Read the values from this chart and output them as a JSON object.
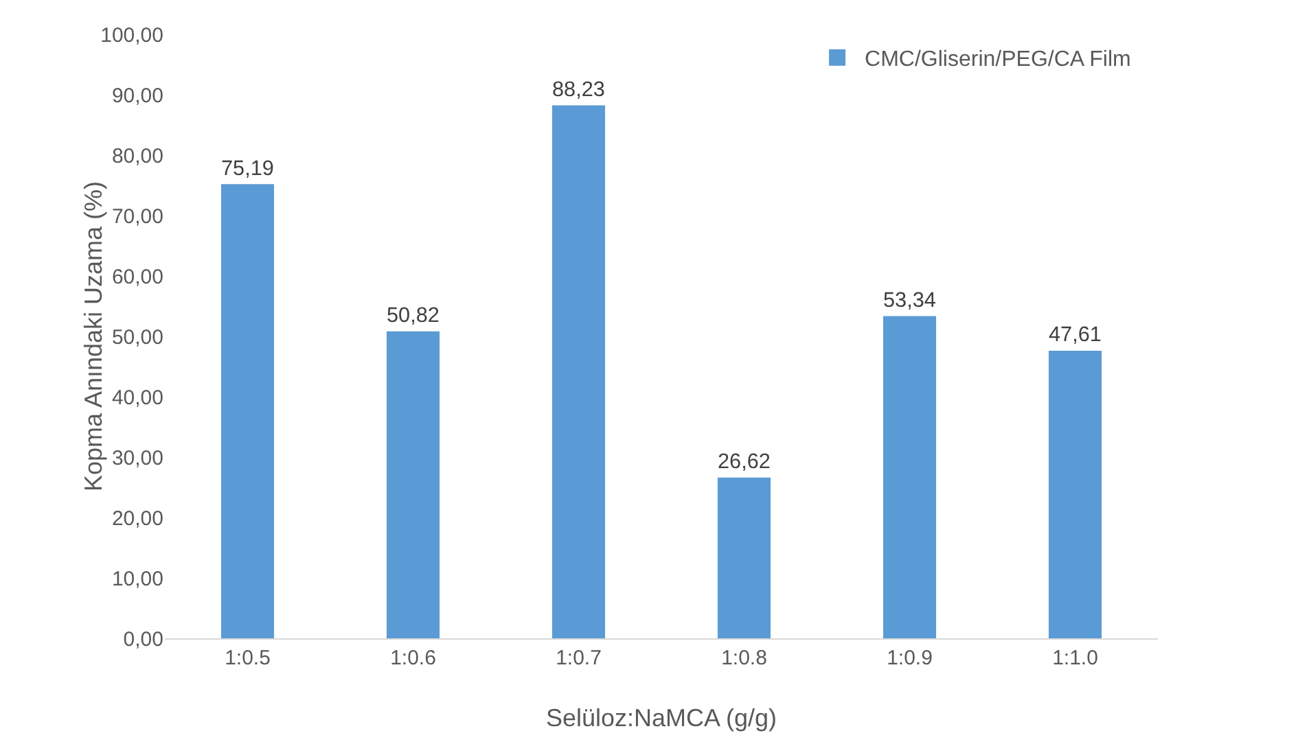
{
  "chart_data": {
    "type": "bar",
    "xlabel": "Selüloz:NaMCA (g/g)",
    "ylabel": "Kopma Anındaki Uzama (%)",
    "categories": [
      "1:0.5",
      "1:0.6",
      "1:0.7",
      "1:0.8",
      "1:0.9",
      "1:1.0"
    ],
    "series": [
      {
        "name": "CMC/Gliserin/PEG/CA Film",
        "color": "#5b9bd5",
        "values": [
          75.19,
          50.82,
          88.23,
          26.62,
          53.34,
          47.61
        ],
        "value_labels": [
          "75,19",
          "50,82",
          "88,23",
          "26,62",
          "53,34",
          "47,61"
        ]
      }
    ],
    "ylim": [
      0,
      100
    ],
    "yticks": [
      {
        "value": 0,
        "label": "0,00"
      },
      {
        "value": 10,
        "label": "10,00"
      },
      {
        "value": 20,
        "label": "20,00"
      },
      {
        "value": 30,
        "label": "30,00"
      },
      {
        "value": 40,
        "label": "40,00"
      },
      {
        "value": 50,
        "label": "50,00"
      },
      {
        "value": 60,
        "label": "60,00"
      },
      {
        "value": 70,
        "label": "70,00"
      },
      {
        "value": 80,
        "label": "80,00"
      },
      {
        "value": 90,
        "label": "90,00"
      },
      {
        "value": 100,
        "label": "100,00"
      }
    ],
    "grid": false,
    "legend": "top right"
  }
}
